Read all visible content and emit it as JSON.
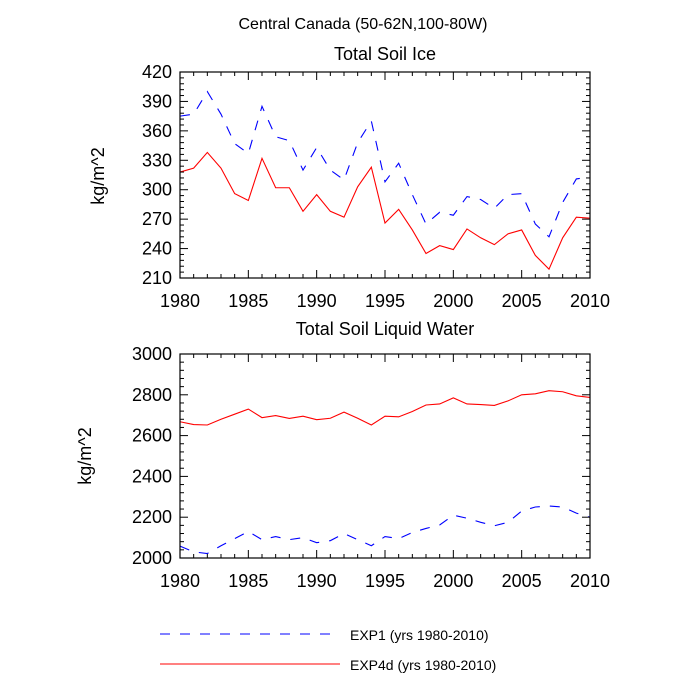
{
  "figure": {
    "title": "Central Canada (50-62N,100-80W)"
  },
  "legend": {
    "placement": "bottom",
    "entries": [
      {
        "label": "EXP1 (yrs 1980-2010)",
        "color": "#0000ff",
        "dash": "dashed"
      },
      {
        "label": "EXP4d (yrs 1980-2010)",
        "color": "#ff0000",
        "dash": "solid"
      }
    ]
  },
  "chart_data": [
    {
      "type": "line",
      "title": "Total Soil Ice",
      "xlabel": "",
      "ylabel": "kg/m^2",
      "xlim": [
        1980,
        2010
      ],
      "ylim": [
        210,
        420
      ],
      "xticks": [
        1980,
        1985,
        1990,
        1995,
        2000,
        2005,
        2010
      ],
      "yticks": [
        210,
        240,
        270,
        300,
        330,
        360,
        390,
        420
      ],
      "x": [
        1980,
        1981,
        1982,
        1983,
        1984,
        1985,
        1986,
        1987,
        1988,
        1989,
        1990,
        1991,
        1992,
        1993,
        1994,
        1995,
        1996,
        1997,
        1998,
        1999,
        2000,
        2001,
        2002,
        2003,
        2004,
        2005,
        2006,
        2007,
        2008,
        2009,
        2010
      ],
      "series": [
        {
          "name": "EXP1 (yrs 1980-2010)",
          "color": "#0000ff",
          "dash": "dashed",
          "values": [
            375,
            377,
            400,
            377,
            347,
            337,
            385,
            354,
            350,
            320,
            343,
            320,
            310,
            348,
            370,
            308,
            327,
            295,
            265,
            277,
            274,
            293,
            290,
            281,
            295,
            296,
            265,
            252,
            287,
            311,
            313
          ]
        },
        {
          "name": "EXP4d (yrs 1980-2010)",
          "color": "#ff0000",
          "dash": "solid",
          "values": [
            318,
            322,
            338,
            322,
            296,
            289,
            332,
            302,
            302,
            278,
            295,
            278,
            272,
            303,
            323,
            266,
            280,
            259,
            235,
            243,
            239,
            260,
            251,
            244,
            255,
            259,
            233,
            219,
            251,
            272,
            271
          ]
        }
      ]
    },
    {
      "type": "line",
      "title": "Total Soil Liquid Water",
      "xlabel": "",
      "ylabel": "kg/m^2",
      "xlim": [
        1980,
        2010
      ],
      "ylim": [
        2000,
        3000
      ],
      "xticks": [
        1980,
        1985,
        1990,
        1995,
        2000,
        2005,
        2010
      ],
      "yticks": [
        2000,
        2200,
        2400,
        2600,
        2800,
        3000
      ],
      "x": [
        1980,
        1981,
        1982,
        1983,
        1984,
        1985,
        1986,
        1987,
        1988,
        1989,
        1990,
        1991,
        1992,
        1993,
        1994,
        1995,
        1996,
        1997,
        1998,
        1999,
        2000,
        2001,
        2002,
        2003,
        2004,
        2005,
        2006,
        2007,
        2008,
        2009,
        2010
      ],
      "series": [
        {
          "name": "EXP1 (yrs 1980-2010)",
          "color": "#0000ff",
          "dash": "dashed",
          "values": [
            2058,
            2030,
            2022,
            2060,
            2095,
            2130,
            2090,
            2105,
            2090,
            2100,
            2075,
            2085,
            2120,
            2090,
            2060,
            2105,
            2095,
            2125,
            2145,
            2162,
            2210,
            2195,
            2175,
            2158,
            2175,
            2230,
            2250,
            2255,
            2250,
            2220,
            2200
          ]
        },
        {
          "name": "EXP4d (yrs 1980-2010)",
          "color": "#ff0000",
          "dash": "solid",
          "values": [
            2668,
            2654,
            2652,
            2680,
            2705,
            2730,
            2688,
            2698,
            2684,
            2695,
            2678,
            2685,
            2715,
            2685,
            2652,
            2695,
            2692,
            2718,
            2750,
            2755,
            2785,
            2755,
            2752,
            2748,
            2770,
            2800,
            2805,
            2820,
            2815,
            2795,
            2787
          ]
        }
      ]
    }
  ]
}
